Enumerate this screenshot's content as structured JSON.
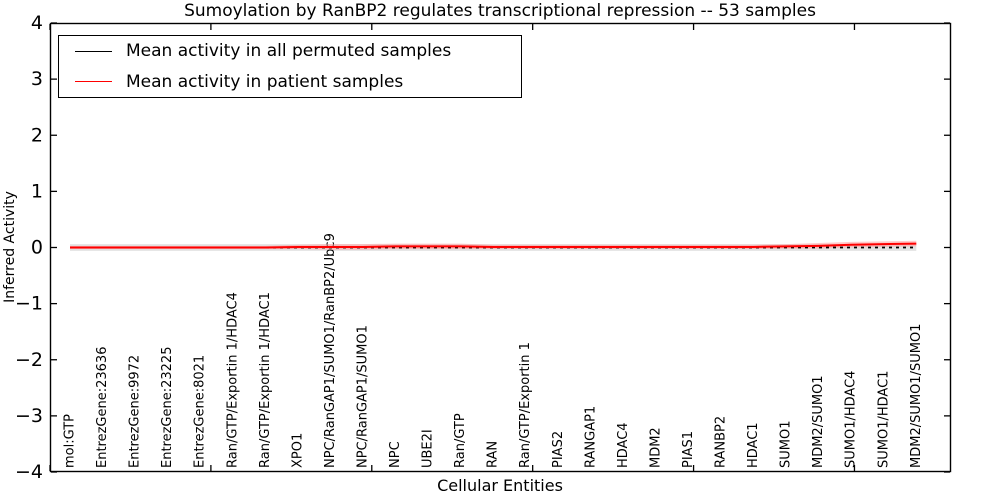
{
  "chart_data": {
    "type": "line",
    "title": "Sumoylation by RanBP2 regulates transcriptional repression -- 53 samples",
    "xlabel": "Cellular Entities",
    "ylabel": "Inferred Activity",
    "ylim": [
      -4,
      4
    ],
    "yticks": [
      -4,
      -3,
      -2,
      -1,
      0,
      1,
      2,
      3,
      4
    ],
    "xlim": [
      0,
      28
    ],
    "xticks": [
      0,
      5,
      10,
      15,
      20,
      25
    ],
    "grid": false,
    "legend_position": "upper left",
    "background": "#ffffff",
    "categories": [
      "mol:GTP",
      "EntrezGene:23636",
      "EntrezGene:9972",
      "EntrezGene:23225",
      "EntrezGene:8021",
      "Ran/GTP/Exportin 1/HDAC4",
      "Ran/GTP/Exportin 1/HDAC1",
      "XPO1",
      "NPC/RanGAP1/SUMO1/RanBP2/Ubc9",
      "NPC/RanGAP1/SUMO1",
      "NPC",
      "UBE2I",
      "Ran/GTP",
      "RAN",
      "Ran/GTP/Exportin 1",
      "PIAS2",
      "RANGAP1",
      "HDAC4",
      "MDM2",
      "PIAS1",
      "RANBP2",
      "HDAC1",
      "SUMO1",
      "MDM2/SUMO1",
      "SUMO1/HDAC4",
      "SUMO1/HDAC1",
      "MDM2/SUMO1/SUMO1"
    ],
    "series": [
      {
        "name": "Mean activity in all permuted samples",
        "color": "#000000",
        "linestyle": "dashed",
        "band_color": "#e0e0e0",
        "values": [
          0,
          0,
          0,
          0,
          0,
          0,
          0,
          0,
          0,
          0,
          0,
          0,
          0,
          0,
          0,
          0,
          0,
          0,
          0,
          0,
          0,
          0,
          0,
          0,
          0,
          0,
          0
        ],
        "band_halfwidth": [
          0.06,
          0.06,
          0.06,
          0.06,
          0.06,
          0.06,
          0.06,
          0.06,
          0.06,
          0.06,
          0.06,
          0.06,
          0.06,
          0.06,
          0.06,
          0.06,
          0.06,
          0.06,
          0.06,
          0.06,
          0.06,
          0.06,
          0.06,
          0.06,
          0.06,
          0.06,
          0.06
        ]
      },
      {
        "name": "Mean activity in patient samples",
        "color": "#ff0000",
        "linestyle": "solid",
        "band_color": "#ff9e9e",
        "values": [
          0,
          0,
          0,
          0,
          0,
          0,
          0,
          0.01,
          0.01,
          0.01,
          0.02,
          0.02,
          0.02,
          0.01,
          0.01,
          0.01,
          0.01,
          0.01,
          0.01,
          0.01,
          0.01,
          0.01,
          0.02,
          0.03,
          0.05,
          0.06,
          0.07
        ],
        "band_halfwidth": [
          0.03,
          0.03,
          0.03,
          0.03,
          0.03,
          0.03,
          0.03,
          0.04,
          0.05,
          0.05,
          0.05,
          0.05,
          0.05,
          0.04,
          0.04,
          0.04,
          0.04,
          0.04,
          0.04,
          0.04,
          0.04,
          0.04,
          0.04,
          0.05,
          0.05,
          0.05,
          0.05
        ]
      }
    ]
  }
}
